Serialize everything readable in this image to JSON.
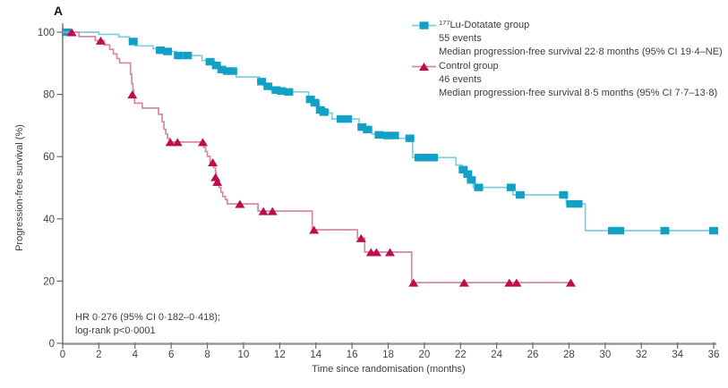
{
  "panel_label": "A",
  "legend": {
    "items": [
      {
        "sup": "177",
        "label": "Lu-Dotatate group",
        "events": "55 events",
        "median": "Median progression-free survival 22·8 months (95% CI 19·4–NE)"
      },
      {
        "sup": "",
        "label": "Control group",
        "events": "46 events",
        "median": "Median progression-free survival 8·5 months (95% CI 7·7–13·8)"
      }
    ]
  },
  "annotation": {
    "line1": "HR 0·276 (95% CI 0·182–0·418);",
    "line2": "log-rank p<0·0001"
  },
  "chart_data": {
    "type": "line",
    "subtype": "kaplan-meier-step",
    "xlabel": "Time since randomisation (months)",
    "ylabel": "Progression-free survival (%)",
    "xlim": [
      0,
      36
    ],
    "ylim": [
      0,
      100
    ],
    "xticks": [
      0,
      2,
      4,
      6,
      8,
      10,
      12,
      14,
      16,
      18,
      20,
      22,
      24,
      26,
      28,
      30,
      32,
      34,
      36
    ],
    "yticks": [
      0,
      20,
      40,
      60,
      80,
      100
    ],
    "grid": false,
    "legend_position": "top-right",
    "series": [
      {
        "name": "177Lu-Dotatate group",
        "marker": "square",
        "marker_color": "#12A0C7",
        "line_color": "#7FCDE0",
        "end_x": 36,
        "steps": [
          [
            0,
            100
          ],
          [
            2,
            99.3
          ],
          [
            3.1,
            98.5
          ],
          [
            3.7,
            97
          ],
          [
            4,
            95.6
          ],
          [
            5,
            94.7
          ],
          [
            5.5,
            93.8
          ],
          [
            6.3,
            92.5
          ],
          [
            7.7,
            90.9
          ],
          [
            8.4,
            88.9
          ],
          [
            8.7,
            87.5
          ],
          [
            9.6,
            85.6
          ],
          [
            10.9,
            84.1
          ],
          [
            11.2,
            82.6
          ],
          [
            11.5,
            81.4
          ],
          [
            12.4,
            80.8
          ],
          [
            13.6,
            78.4
          ],
          [
            14.05,
            76.9
          ],
          [
            14.2,
            75
          ],
          [
            14.7,
            74
          ],
          [
            14.9,
            72.1
          ],
          [
            16.4,
            69.7
          ],
          [
            17.1,
            67.3
          ],
          [
            18.5,
            65.9
          ],
          [
            19.35,
            59.7
          ],
          [
            21.75,
            57.3
          ],
          [
            22.1,
            55.8
          ],
          [
            22.35,
            54.4
          ],
          [
            22.5,
            52.5
          ],
          [
            22.7,
            50.1
          ],
          [
            24.9,
            47.7
          ],
          [
            27.85,
            44.8
          ],
          [
            28.9,
            36.2
          ]
        ],
        "censors": [
          [
            0.2,
            100
          ],
          [
            3.9,
            97
          ],
          [
            5.4,
            94.2
          ],
          [
            5.8,
            93.8
          ],
          [
            6.4,
            92.5
          ],
          [
            6.9,
            92.5
          ],
          [
            8.15,
            90.5
          ],
          [
            8.5,
            89.3
          ],
          [
            8.8,
            88
          ],
          [
            9.1,
            87.5
          ],
          [
            9.4,
            87.5
          ],
          [
            11,
            84.1
          ],
          [
            11.35,
            82.6
          ],
          [
            11.8,
            81.4
          ],
          [
            12.1,
            81.1
          ],
          [
            12.5,
            80.8
          ],
          [
            13.7,
            78.4
          ],
          [
            13.95,
            77.3
          ],
          [
            14.25,
            75
          ],
          [
            14.45,
            74.3
          ],
          [
            15.4,
            72.1
          ],
          [
            15.75,
            72.1
          ],
          [
            16.55,
            69.5
          ],
          [
            16.85,
            68.7
          ],
          [
            17.5,
            67
          ],
          [
            17.95,
            66.8
          ],
          [
            18.35,
            66.8
          ],
          [
            19.2,
            65.9
          ],
          [
            19.7,
            59.7
          ],
          [
            20.1,
            59.7
          ],
          [
            20.5,
            59.7
          ],
          [
            22.15,
            55.8
          ],
          [
            22.4,
            54.4
          ],
          [
            22.6,
            52.5
          ],
          [
            23,
            50.1
          ],
          [
            24.8,
            50.1
          ],
          [
            25.3,
            47.7
          ],
          [
            27.7,
            47.7
          ],
          [
            28.1,
            44.8
          ],
          [
            28.5,
            44.8
          ],
          [
            30.4,
            36.2
          ],
          [
            30.8,
            36.2
          ],
          [
            33.3,
            36.2
          ],
          [
            36,
            36.2
          ]
        ]
      },
      {
        "name": "Control group",
        "marker": "triangle",
        "marker_color": "#BE0D4F",
        "line_color": "#D887A4",
        "end_x": 28.2,
        "steps": [
          [
            0,
            100
          ],
          [
            0.9,
            98.6
          ],
          [
            1.8,
            97.3
          ],
          [
            2.3,
            95.9
          ],
          [
            2.6,
            94.5
          ],
          [
            2.8,
            93
          ],
          [
            3,
            91.5
          ],
          [
            3.15,
            90.1
          ],
          [
            3.75,
            86.5
          ],
          [
            3.82,
            83.5
          ],
          [
            3.88,
            81.5
          ],
          [
            3.93,
            79
          ],
          [
            3.98,
            77.2
          ],
          [
            4.4,
            75.6
          ],
          [
            5.3,
            73.6
          ],
          [
            5.5,
            71.2
          ],
          [
            5.6,
            68.8
          ],
          [
            5.7,
            67.3
          ],
          [
            5.8,
            65.9
          ],
          [
            5.9,
            64.7
          ],
          [
            7.8,
            63
          ],
          [
            7.9,
            61.6
          ],
          [
            8,
            60.1
          ],
          [
            8.15,
            58.2
          ],
          [
            8.35,
            56.5
          ],
          [
            8.45,
            55
          ],
          [
            8.5,
            53.4
          ],
          [
            8.55,
            51.9
          ],
          [
            8.65,
            50.1
          ],
          [
            8.75,
            48.6
          ],
          [
            8.85,
            47.2
          ],
          [
            9,
            46.2
          ],
          [
            9.1,
            44.8
          ],
          [
            10.8,
            42.5
          ],
          [
            13.8,
            36.5
          ],
          [
            16.3,
            33.8
          ],
          [
            16.7,
            29.3
          ],
          [
            19.3,
            19.5
          ]
        ],
        "censors": [
          [
            0.5,
            100
          ],
          [
            2.1,
            97.3
          ],
          [
            3.85,
            80
          ],
          [
            5.95,
            64.7
          ],
          [
            6.35,
            64.7
          ],
          [
            7.75,
            64.7
          ],
          [
            8.3,
            58.2
          ],
          [
            8.45,
            53.4
          ],
          [
            8.55,
            51.9
          ],
          [
            9.8,
            44.8
          ],
          [
            11.1,
            42.5
          ],
          [
            11.6,
            42.5
          ],
          [
            13.9,
            36.5
          ],
          [
            16.5,
            33.8
          ],
          [
            17.05,
            29.3
          ],
          [
            17.35,
            29.3
          ],
          [
            18.1,
            29.3
          ],
          [
            19.4,
            19.5
          ],
          [
            22.2,
            19.5
          ],
          [
            24.7,
            19.5
          ],
          [
            25.1,
            19.5
          ],
          [
            28.1,
            19.5
          ]
        ]
      }
    ]
  }
}
